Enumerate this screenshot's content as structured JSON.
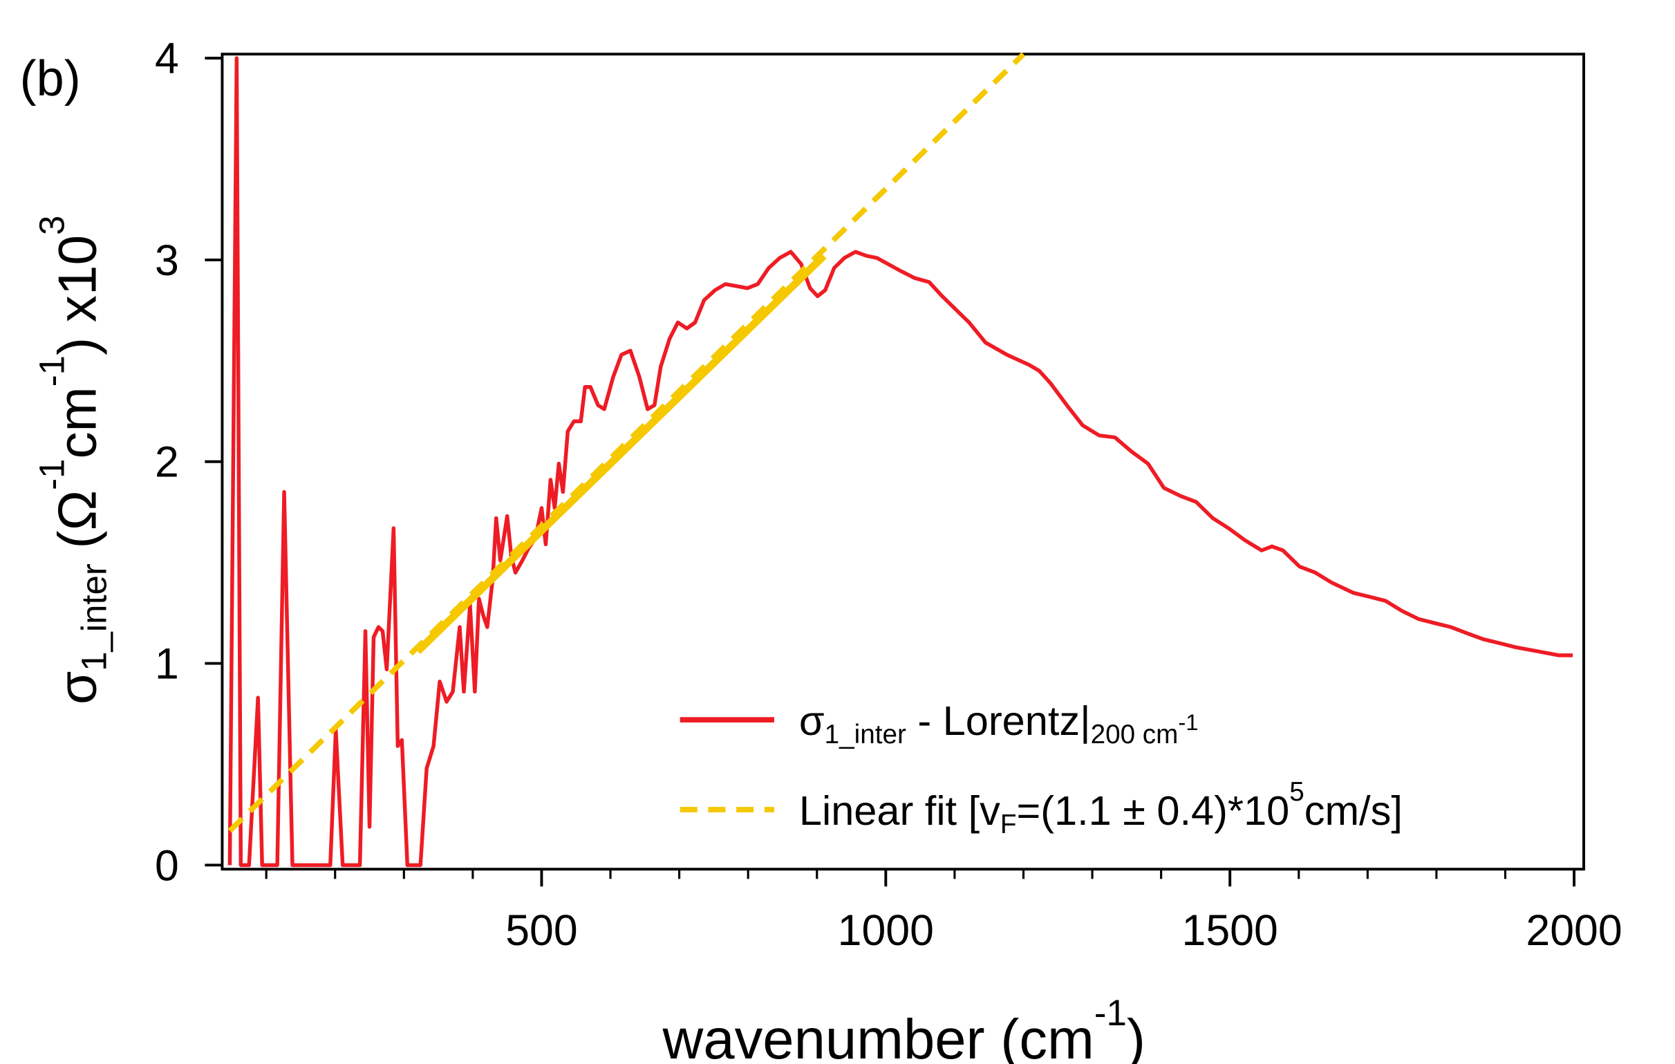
{
  "chart_data": {
    "type": "line",
    "panel_label": "(b)",
    "x_label": [
      {
        "text": "wavenumber (cm",
        "pos": "base"
      },
      {
        "text": "-1",
        "pos": "sup"
      },
      {
        "text": ")",
        "pos": "base"
      }
    ],
    "y_label": [
      {
        "text": "σ",
        "pos": "base"
      },
      {
        "text": "1_inter",
        "pos": "sub"
      },
      {
        "text": " (Ω",
        "pos": "base"
      },
      {
        "text": "-1",
        "pos": "sup"
      },
      {
        "text": "cm",
        "pos": "base"
      },
      {
        "text": "-1",
        "pos": "sup"
      },
      {
        "text": ") x10",
        "pos": "base"
      },
      {
        "text": "3",
        "pos": "sup"
      }
    ],
    "xlim": [
      36,
      2014
    ],
    "ylim": [
      -0.02,
      4.02
    ],
    "xticks": [
      500,
      1000,
      1500,
      2000
    ],
    "xminor": [
      100,
      200,
      300,
      400,
      600,
      700,
      800,
      900,
      1100,
      1200,
      1300,
      1400,
      1600,
      1700,
      1800,
      1900
    ],
    "yticks": [
      0,
      1,
      2,
      3,
      4
    ],
    "legend": "lower right",
    "series": [
      {
        "name": [
          {
            "text": "σ",
            "pos": "base"
          },
          {
            "text": "1_inter",
            "pos": "sub"
          },
          {
            "text": " - Lorentz|",
            "pos": "base"
          },
          {
            "text": "200 cm",
            "pos": "sub"
          },
          {
            "text": "-1",
            "pos": "subsup"
          }
        ],
        "color": "#ee1c25",
        "dash": false,
        "x": [
          47,
          57,
          63,
          75,
          88,
          94,
          116,
          126,
          138,
          193,
          201,
          211,
          236,
          244,
          250,
          256,
          263,
          269,
          275,
          285,
          291,
          297,
          305,
          324,
          333,
          343,
          352,
          362,
          371,
          381,
          387,
          396,
          403,
          409,
          415,
          421,
          429,
          434,
          440,
          450,
          456,
          462,
          472,
          481,
          491,
          500,
          506,
          513,
          519,
          525,
          531,
          538,
          547,
          557,
          563,
          571,
          582,
          591,
          604,
          616,
          629,
          642,
          654,
          664,
          673,
          686,
          698,
          711,
          723,
          736,
          752,
          767,
          783,
          799,
          814,
          830,
          846,
          862,
          877,
          890,
          901,
          912,
          925,
          940,
          956,
          972,
          987,
          1003,
          1019,
          1042,
          1063,
          1082,
          1097,
          1121,
          1145,
          1176,
          1208,
          1223,
          1239,
          1263,
          1286,
          1310,
          1333,
          1357,
          1381,
          1404,
          1428,
          1451,
          1475,
          1498,
          1522,
          1546,
          1561,
          1577,
          1601,
          1624,
          1648,
          1679,
          1703,
          1726,
          1750,
          1774,
          1797,
          1821,
          1844,
          1868,
          1892,
          1915,
          1947,
          1978,
          1998
        ],
        "values": [
          0,
          4.0,
          0,
          0,
          0.83,
          0,
          0,
          1.85,
          0,
          0,
          0.67,
          0,
          0,
          1.16,
          0.19,
          1.13,
          1.18,
          1.16,
          0.97,
          1.67,
          0.59,
          0.62,
          0,
          0,
          0.48,
          0.59,
          0.91,
          0.81,
          0.86,
          1.18,
          0.86,
          1.29,
          0.86,
          1.32,
          1.24,
          1.18,
          1.42,
          1.72,
          1.51,
          1.73,
          1.53,
          1.45,
          1.51,
          1.57,
          1.62,
          1.77,
          1.59,
          1.91,
          1.77,
          1.99,
          1.85,
          2.15,
          2.2,
          2.2,
          2.37,
          2.37,
          2.28,
          2.26,
          2.42,
          2.53,
          2.55,
          2.42,
          2.26,
          2.28,
          2.47,
          2.61,
          2.69,
          2.66,
          2.69,
          2.8,
          2.85,
          2.88,
          2.87,
          2.86,
          2.88,
          2.96,
          3.01,
          3.04,
          2.98,
          2.86,
          2.82,
          2.85,
          2.96,
          3.01,
          3.04,
          3.02,
          3.01,
          2.98,
          2.95,
          2.91,
          2.89,
          2.82,
          2.77,
          2.69,
          2.59,
          2.53,
          2.48,
          2.45,
          2.39,
          2.28,
          2.18,
          2.13,
          2.12,
          2.05,
          1.99,
          1.87,
          1.83,
          1.8,
          1.72,
          1.67,
          1.61,
          1.56,
          1.58,
          1.56,
          1.48,
          1.45,
          1.4,
          1.35,
          1.33,
          1.31,
          1.26,
          1.22,
          1.2,
          1.18,
          1.15,
          1.12,
          1.1,
          1.08,
          1.06,
          1.04,
          1.04
        ]
      },
      {
        "name": [
          {
            "text": "Linear fit [v",
            "pos": "base"
          },
          {
            "text": "F",
            "pos": "sub"
          },
          {
            "text": "=(1.1 ± 0.4)*10",
            "pos": "base"
          },
          {
            "text": "5",
            "pos": "sup"
          },
          {
            "text": "cm/s]",
            "pos": "base"
          }
        ],
        "color": "#f5c800",
        "dash": true,
        "x": [
          47,
          1200
        ],
        "values": [
          0.17,
          4.02
        ]
      },
      {
        "color": "#f5c800",
        "dash": false,
        "x": [
          320,
          910
        ],
        "values": [
          1.06,
          3.02
        ]
      }
    ]
  }
}
